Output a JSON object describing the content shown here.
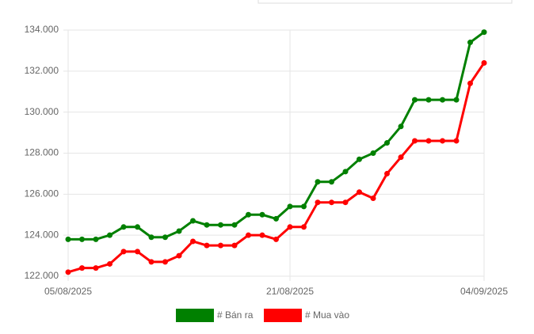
{
  "chart_data": {
    "type": "line",
    "categories": [
      "05/08/2025",
      null,
      null,
      null,
      null,
      null,
      null,
      null,
      null,
      null,
      null,
      null,
      null,
      null,
      null,
      null,
      "21/08/2025",
      null,
      null,
      null,
      null,
      null,
      null,
      null,
      null,
      null,
      null,
      null,
      null,
      null,
      "04/09/2025"
    ],
    "series": [
      {
        "name": "# Bán ra",
        "color": "#008000",
        "values": [
          123800,
          123800,
          123800,
          124000,
          124400,
          124400,
          123900,
          123900,
          124200,
          124700,
          124500,
          124500,
          124500,
          125000,
          125000,
          124800,
          125400,
          125400,
          126600,
          126600,
          127100,
          127700,
          128000,
          128500,
          129300,
          130600,
          130600,
          130600,
          130600,
          133400,
          133900
        ]
      },
      {
        "name": "# Mua vào",
        "color": "#ff0000",
        "values": [
          122200,
          122400,
          122400,
          122600,
          123200,
          123200,
          122700,
          122700,
          123000,
          123700,
          123500,
          123500,
          123500,
          124000,
          124000,
          123800,
          124400,
          124400,
          125600,
          125600,
          125600,
          126100,
          125800,
          127000,
          127800,
          128600,
          128600,
          128600,
          128600,
          131400,
          132400
        ]
      }
    ],
    "ylim": [
      122000,
      134000
    ],
    "yticks": [
      {
        "value": 122000,
        "label": "122.000"
      },
      {
        "value": 124000,
        "label": "124.000"
      },
      {
        "value": 126000,
        "label": "126.000"
      },
      {
        "value": 128000,
        "label": "128.000"
      },
      {
        "value": 130000,
        "label": "130.000"
      },
      {
        "value": 132000,
        "label": "132.000"
      },
      {
        "value": 134000,
        "label": "134.000"
      }
    ],
    "grid": true
  }
}
